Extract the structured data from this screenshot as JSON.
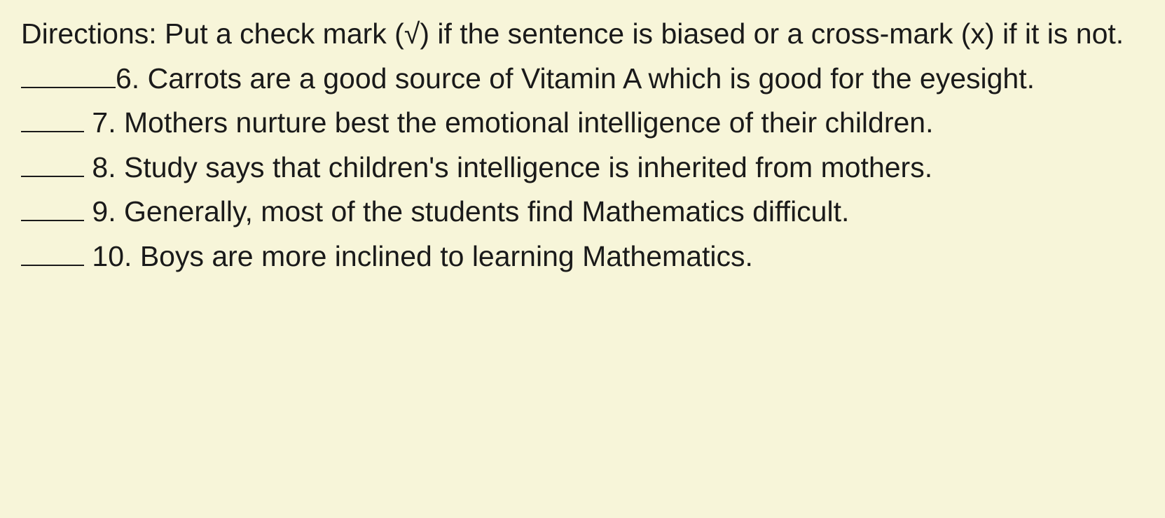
{
  "background_color": "#f7f5d9",
  "text_color": "#1a1a1a",
  "font_family": "Arial, Helvetica, sans-serif",
  "font_size_pt": 31,
  "line_height": 1.5,
  "directions": {
    "text": "Directions: Put a check mark (√) if the sentence is biased or a cross-mark (x) if it is not."
  },
  "items": [
    {
      "number": "6.",
      "text": "Carrots are a good source of Vitamin A which is good for the eyesight.",
      "blank_width": "long"
    },
    {
      "number": "7.",
      "text": "Mothers nurture best the emotional intelligence of their children.",
      "blank_width": "short"
    },
    {
      "number": "8.",
      "text": "Study says that children's intelligence is inherited from mothers.",
      "blank_width": "short"
    },
    {
      "number": "9.",
      "text": "Generally, most of the students find Mathematics difficult.",
      "blank_width": "short"
    },
    {
      "number": "10.",
      "text": "Boys are more inclined to learning Mathematics.",
      "blank_width": "short"
    }
  ]
}
